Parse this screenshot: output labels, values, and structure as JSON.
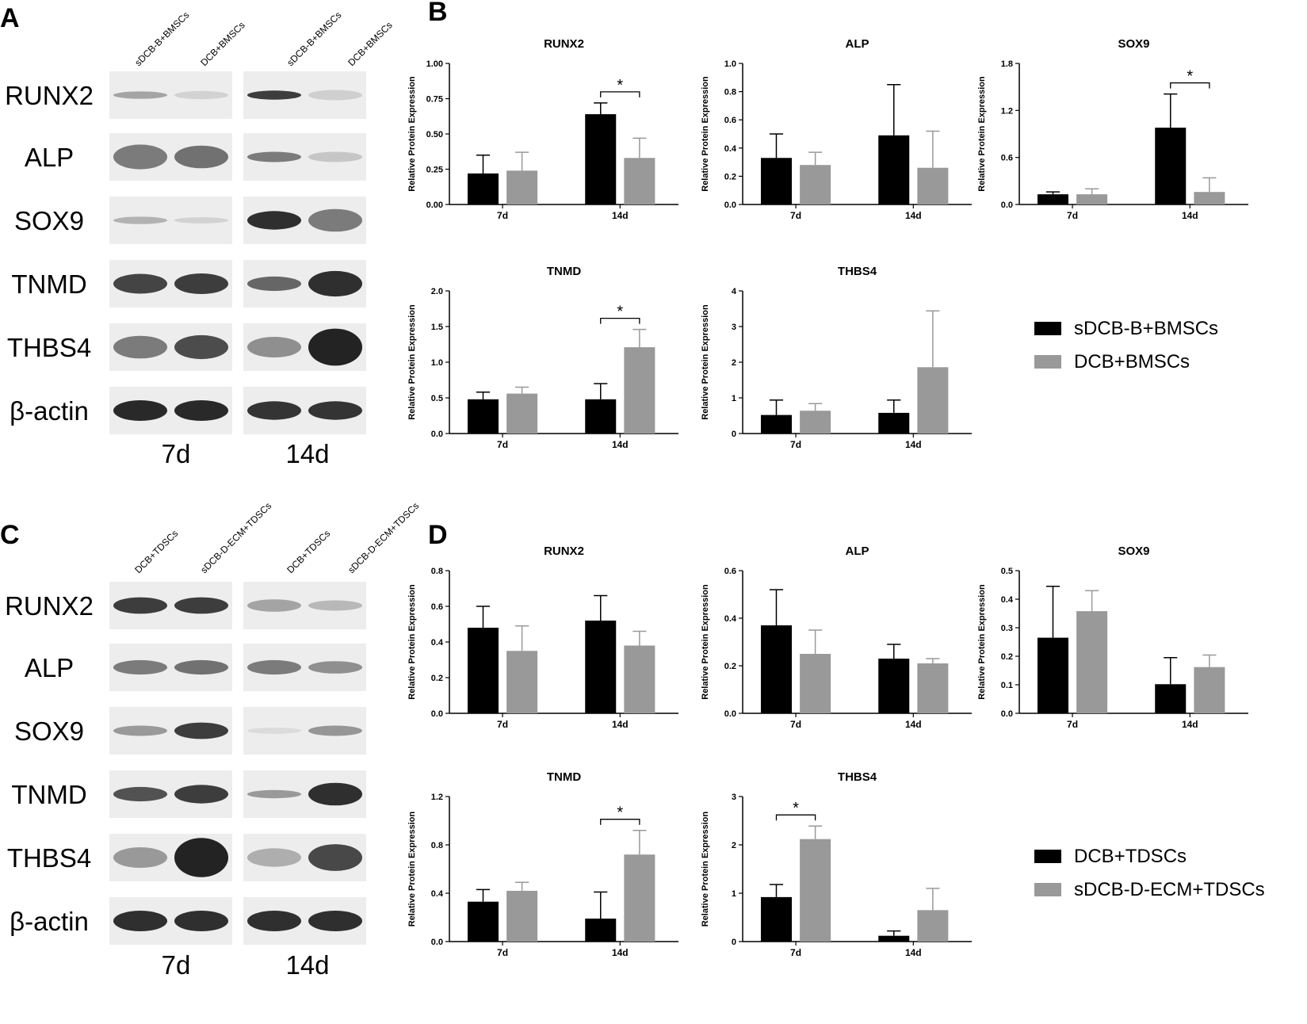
{
  "colors": {
    "black_bar": "#000000",
    "gray_bar": "#999999",
    "axis": "#000000"
  },
  "panels": [
    {
      "letter": "A",
      "lanes": [
        "sDCB-B+BMSCs",
        "DCB+BMSCs",
        "sDCB-B+BMSCs",
        "DCB+BMSCs"
      ],
      "bands": [
        "RUNX2",
        "ALP",
        "SOX9",
        "TNMD",
        "THBS4",
        "β-actin"
      ],
      "times": [
        "7d",
        "14d"
      ]
    },
    {
      "letter": "C",
      "lanes": [
        "DCB+TDSCs",
        "sDCB-D-ECM+TDSCs",
        "DCB+TDSCs",
        "sDCB-D-ECM+TDSCs"
      ],
      "bands": [
        "RUNX2",
        "ALP",
        "SOX9",
        "TNMD",
        "THBS4",
        "β-actin"
      ],
      "times": [
        "7d",
        "14d"
      ]
    }
  ],
  "chart_panels": [
    {
      "letter": "B",
      "legend": [
        "sDCB-B+BMSCs",
        "DCB+BMSCs"
      ]
    },
    {
      "letter": "D",
      "legend": [
        "DCB+TDSCs",
        "sDCB-D-ECM+TDSCs"
      ]
    }
  ],
  "chart_data": [
    {
      "type": "bar",
      "panel": "B",
      "title": "RUNX2",
      "ylabel": "Relative Protein Expression",
      "categories": [
        "7d",
        "14d"
      ],
      "ylim": [
        0,
        1.0
      ],
      "yticks": [
        "0.00",
        "0.25",
        "0.50",
        "0.75",
        "1.00"
      ],
      "series": [
        {
          "name": "sDCB-B+BMSCs",
          "values": [
            0.22,
            0.64
          ],
          "errors": [
            0.13,
            0.08
          ]
        },
        {
          "name": "DCB+BMSCs",
          "values": [
            0.24,
            0.33
          ],
          "errors": [
            0.13,
            0.14
          ]
        }
      ],
      "significance": [
        {
          "category": "14d",
          "label": "*"
        }
      ]
    },
    {
      "type": "bar",
      "panel": "B",
      "title": "ALP",
      "ylabel": "Relative Protein Expression",
      "categories": [
        "7d",
        "14d"
      ],
      "ylim": [
        0,
        1.0
      ],
      "yticks": [
        "0.0",
        "0.2",
        "0.4",
        "0.6",
        "0.8",
        "1.0"
      ],
      "series": [
        {
          "name": "sDCB-B+BMSCs",
          "values": [
            0.33,
            0.49
          ],
          "errors": [
            0.17,
            0.36
          ]
        },
        {
          "name": "DCB+BMSCs",
          "values": [
            0.28,
            0.26
          ],
          "errors": [
            0.09,
            0.26
          ]
        }
      ],
      "significance": []
    },
    {
      "type": "bar",
      "panel": "B",
      "title": "SOX9",
      "ylabel": "Relative Protein Expression",
      "categories": [
        "7d",
        "14d"
      ],
      "ylim": [
        0,
        1.8
      ],
      "yticks": [
        "0.0",
        "0.6",
        "1.2",
        "1.8"
      ],
      "series": [
        {
          "name": "sDCB-B+BMSCs",
          "values": [
            0.13,
            0.98
          ],
          "errors": [
            0.03,
            0.43
          ]
        },
        {
          "name": "DCB+BMSCs",
          "values": [
            0.13,
            0.16
          ],
          "errors": [
            0.07,
            0.18
          ]
        }
      ],
      "significance": [
        {
          "category": "14d",
          "label": "*"
        }
      ]
    },
    {
      "type": "bar",
      "panel": "B",
      "title": "TNMD",
      "ylabel": "Relative Protein Expression",
      "categories": [
        "7d",
        "14d"
      ],
      "ylim": [
        0,
        2.0
      ],
      "yticks": [
        "0.0",
        "0.5",
        "1.0",
        "1.5",
        "2.0"
      ],
      "series": [
        {
          "name": "sDCB-B+BMSCs",
          "values": [
            0.48,
            0.48
          ],
          "errors": [
            0.1,
            0.22
          ]
        },
        {
          "name": "DCB+BMSCs",
          "values": [
            0.56,
            1.21
          ],
          "errors": [
            0.09,
            0.25
          ]
        }
      ],
      "significance": [
        {
          "category": "14d",
          "label": "*"
        }
      ]
    },
    {
      "type": "bar",
      "panel": "B",
      "title": "THBS4",
      "ylabel": "Relative Protein Expression",
      "categories": [
        "7d",
        "14d"
      ],
      "ylim": [
        0,
        4
      ],
      "yticks": [
        "0",
        "1",
        "2",
        "3",
        "4"
      ],
      "series": [
        {
          "name": "sDCB-B+BMSCs",
          "values": [
            0.52,
            0.58
          ],
          "errors": [
            0.42,
            0.36
          ]
        },
        {
          "name": "DCB+BMSCs",
          "values": [
            0.64,
            1.86
          ],
          "errors": [
            0.2,
            1.58
          ]
        }
      ],
      "significance": []
    },
    {
      "type": "bar",
      "panel": "D",
      "title": "RUNX2",
      "ylabel": "Relative Protein Expression",
      "categories": [
        "7d",
        "14d"
      ],
      "ylim": [
        0,
        0.8
      ],
      "yticks": [
        "0.0",
        "0.2",
        "0.4",
        "0.6",
        "0.8"
      ],
      "series": [
        {
          "name": "DCB+TDSCs",
          "values": [
            0.48,
            0.52
          ],
          "errors": [
            0.12,
            0.14
          ]
        },
        {
          "name": "sDCB-D-ECM+TDSCs",
          "values": [
            0.35,
            0.38
          ],
          "errors": [
            0.14,
            0.08
          ]
        }
      ],
      "significance": []
    },
    {
      "type": "bar",
      "panel": "D",
      "title": "ALP",
      "ylabel": "Relative Protein Expression",
      "categories": [
        "7d",
        "14d"
      ],
      "ylim": [
        0,
        0.6
      ],
      "yticks": [
        "0.0",
        "0.2",
        "0.4",
        "0.6"
      ],
      "series": [
        {
          "name": "DCB+TDSCs",
          "values": [
            0.37,
            0.23
          ],
          "errors": [
            0.15,
            0.06
          ]
        },
        {
          "name": "sDCB-D-ECM+TDSCs",
          "values": [
            0.25,
            0.21
          ],
          "errors": [
            0.1,
            0.02
          ]
        }
      ],
      "significance": []
    },
    {
      "type": "bar",
      "panel": "D",
      "title": "SOX9",
      "ylabel": "Relative Protein Expression",
      "categories": [
        "7d",
        "14d"
      ],
      "ylim": [
        0,
        0.5
      ],
      "yticks": [
        "0.0",
        "0.1",
        "0.2",
        "0.3",
        "0.4",
        "0.5"
      ],
      "series": [
        {
          "name": "DCB+TDSCs",
          "values": [
            0.265,
            0.102
          ],
          "errors": [
            0.18,
            0.093
          ]
        },
        {
          "name": "sDCB-D-ECM+TDSCs",
          "values": [
            0.358,
            0.162
          ],
          "errors": [
            0.072,
            0.042
          ]
        }
      ],
      "significance": []
    },
    {
      "type": "bar",
      "panel": "D",
      "title": "TNMD",
      "ylabel": "Relative Protein Expression",
      "categories": [
        "7d",
        "14d"
      ],
      "ylim": [
        0,
        1.2
      ],
      "yticks": [
        "0.0",
        "0.4",
        "0.8",
        "1.2"
      ],
      "series": [
        {
          "name": "DCB+TDSCs",
          "values": [
            0.33,
            0.19
          ],
          "errors": [
            0.1,
            0.22
          ]
        },
        {
          "name": "sDCB-D-ECM+TDSCs",
          "values": [
            0.42,
            0.72
          ],
          "errors": [
            0.07,
            0.2
          ]
        }
      ],
      "significance": [
        {
          "category": "14d",
          "label": "*"
        }
      ]
    },
    {
      "type": "bar",
      "panel": "D",
      "title": "THBS4",
      "ylabel": "Relative Protein Expression",
      "categories": [
        "7d",
        "14d"
      ],
      "ylim": [
        0,
        3
      ],
      "yticks": [
        "0",
        "1",
        "2",
        "3"
      ],
      "series": [
        {
          "name": "DCB+TDSCs",
          "values": [
            0.92,
            0.12
          ],
          "errors": [
            0.26,
            0.1
          ]
        },
        {
          "name": "sDCB-D-ECM+TDSCs",
          "values": [
            2.12,
            0.65
          ],
          "errors": [
            0.27,
            0.45
          ]
        }
      ],
      "significance": [
        {
          "category": "7d",
          "label": "*"
        }
      ]
    }
  ]
}
